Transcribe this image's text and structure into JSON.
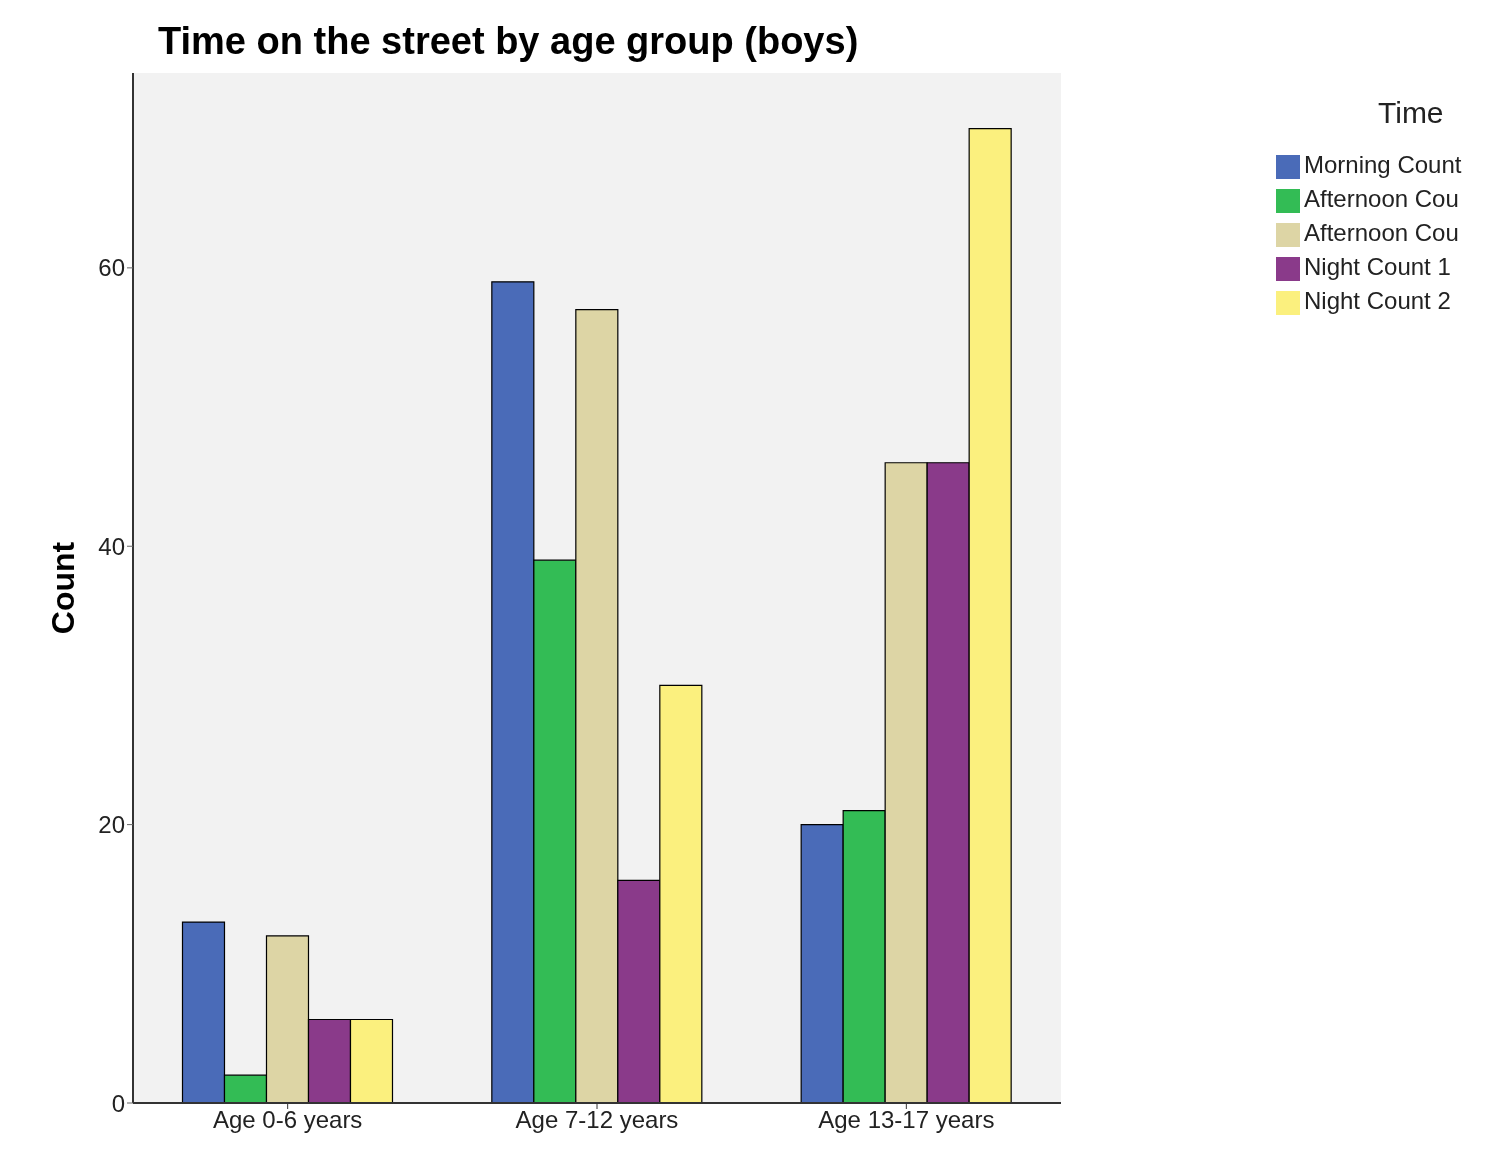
{
  "chart_data": {
    "type": "bar",
    "title": "Time on the street by age group (boys)",
    "ylabel": "Count",
    "legend_title": "Time",
    "categories": [
      "Age 0-6 years",
      "Age 7-12 years",
      "Age 13-17 years"
    ],
    "series": [
      {
        "name": "Morning Count",
        "color": "#4a6bb8",
        "values": [
          13,
          59,
          20
        ]
      },
      {
        "name": "Afternoon Cou",
        "color": "#33bc55",
        "values": [
          2,
          39,
          21
        ]
      },
      {
        "name": "Afternoon Cou",
        "color": "#ddd5a5",
        "values": [
          12,
          57,
          46
        ]
      },
      {
        "name": "Night Count 1",
        "color": "#8a3a8a",
        "values": [
          6,
          16,
          46
        ]
      },
      {
        "name": "Night Count 2",
        "color": "#fbf07e",
        "values": [
          6,
          30,
          70
        ]
      }
    ],
    "ylim": [
      0,
      74
    ],
    "yticks": [
      0,
      20,
      40,
      60
    ],
    "grid": false,
    "legend": "top right"
  }
}
